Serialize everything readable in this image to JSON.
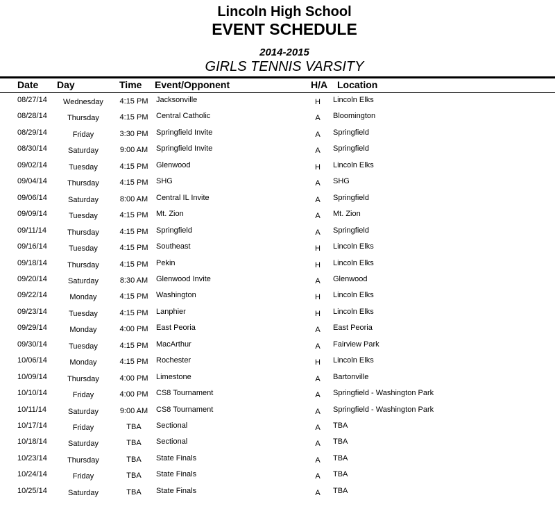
{
  "header": {
    "school": "Lincoln High School",
    "title": "EVENT SCHEDULE",
    "season": "2014-2015",
    "team": "GIRLS TENNIS VARSITY"
  },
  "columns": {
    "date": "Date",
    "day": "Day",
    "time": "Time",
    "event": "Event/Opponent",
    "ha": "H/A",
    "location": "Location"
  },
  "rows": [
    {
      "date": "08/27/14",
      "day": "Wednesday",
      "time": "4:15 PM",
      "event": "Jacksonville",
      "ha": "H",
      "location": "Lincoln Elks"
    },
    {
      "date": "08/28/14",
      "day": "Thursday",
      "time": "4:15 PM",
      "event": "Central Catholic",
      "ha": "A",
      "location": "Bloomington"
    },
    {
      "date": "08/29/14",
      "day": "Friday",
      "time": "3:30 PM",
      "event": "Springfield Invite",
      "ha": "A",
      "location": "Springfield"
    },
    {
      "date": "08/30/14",
      "day": "Saturday",
      "time": "9:00 AM",
      "event": "Springfield Invite",
      "ha": "A",
      "location": "Springfield"
    },
    {
      "date": "09/02/14",
      "day": "Tuesday",
      "time": "4:15 PM",
      "event": "Glenwood",
      "ha": "H",
      "location": "Lincoln Elks"
    },
    {
      "date": "09/04/14",
      "day": "Thursday",
      "time": "4:15 PM",
      "event": "SHG",
      "ha": "A",
      "location": "SHG"
    },
    {
      "date": "09/06/14",
      "day": "Saturday",
      "time": "8:00 AM",
      "event": "Central IL Invite",
      "ha": "A",
      "location": "Springfield"
    },
    {
      "date": "09/09/14",
      "day": "Tuesday",
      "time": "4:15 PM",
      "event": "Mt. Zion",
      "ha": "A",
      "location": "Mt. Zion"
    },
    {
      "date": "09/11/14",
      "day": "Thursday",
      "time": "4:15 PM",
      "event": "Springfield",
      "ha": "A",
      "location": "Springfield"
    },
    {
      "date": "09/16/14",
      "day": "Tuesday",
      "time": "4:15 PM",
      "event": "Southeast",
      "ha": "H",
      "location": "Lincoln Elks"
    },
    {
      "date": "09/18/14",
      "day": "Thursday",
      "time": "4:15 PM",
      "event": "Pekin",
      "ha": "H",
      "location": "Lincoln Elks"
    },
    {
      "date": "09/20/14",
      "day": "Saturday",
      "time": "8:30 AM",
      "event": "Glenwood Invite",
      "ha": "A",
      "location": "Glenwood"
    },
    {
      "date": "09/22/14",
      "day": "Monday",
      "time": "4:15 PM",
      "event": "Washington",
      "ha": "H",
      "location": "Lincoln Elks"
    },
    {
      "date": "09/23/14",
      "day": "Tuesday",
      "time": "4:15 PM",
      "event": "Lanphier",
      "ha": "H",
      "location": "Lincoln Elks"
    },
    {
      "date": "09/29/14",
      "day": "Monday",
      "time": "4:00 PM",
      "event": "East Peoria",
      "ha": "A",
      "location": "East Peoria"
    },
    {
      "date": "09/30/14",
      "day": "Tuesday",
      "time": "4:15 PM",
      "event": "MacArthur",
      "ha": "A",
      "location": "Fairview Park"
    },
    {
      "date": "10/06/14",
      "day": "Monday",
      "time": "4:15 PM",
      "event": "Rochester",
      "ha": "H",
      "location": "Lincoln Elks"
    },
    {
      "date": "10/09/14",
      "day": "Thursday",
      "time": "4:00 PM",
      "event": "Limestone",
      "ha": "A",
      "location": "Bartonville"
    },
    {
      "date": "10/10/14",
      "day": "Friday",
      "time": "4:00 PM",
      "event": "CS8 Tournament",
      "ha": "A",
      "location": "Springfield - Washington Park"
    },
    {
      "date": "10/11/14",
      "day": "Saturday",
      "time": "9:00 AM",
      "event": "CS8 Tournament",
      "ha": "A",
      "location": "Springfield - Washington Park"
    },
    {
      "date": "10/17/14",
      "day": "Friday",
      "time": "TBA",
      "event": "Sectional",
      "ha": "A",
      "location": "TBA"
    },
    {
      "date": "10/18/14",
      "day": "Saturday",
      "time": "TBA",
      "event": "Sectional",
      "ha": "A",
      "location": "TBA"
    },
    {
      "date": "10/23/14",
      "day": "Thursday",
      "time": "TBA",
      "event": "State Finals",
      "ha": "A",
      "location": "TBA"
    },
    {
      "date": "10/24/14",
      "day": "Friday",
      "time": "TBA",
      "event": "State Finals",
      "ha": "A",
      "location": "TBA"
    },
    {
      "date": "10/25/14",
      "day": "Saturday",
      "time": "TBA",
      "event": "State Finals",
      "ha": "A",
      "location": "TBA"
    }
  ]
}
